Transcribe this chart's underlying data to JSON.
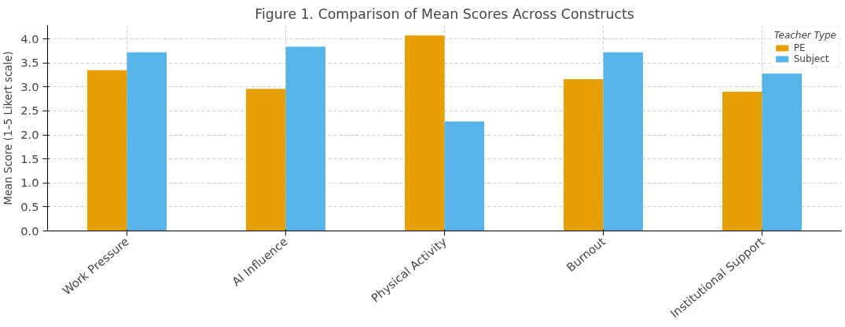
{
  "chart_data": {
    "type": "bar",
    "title": "Figure 1. Comparison of Mean Scores Across Constructs",
    "ylabel": "Mean Score (1–5 Likert scale)",
    "legend_title": "Teacher Type",
    "categories": [
      "Work Pressure",
      "AI Influence",
      "Physical Activity",
      "Burnout",
      "Institutional Support"
    ],
    "series": [
      {
        "name": "PE",
        "color": "#e69f00",
        "values": [
          3.35,
          2.96,
          4.07,
          3.16,
          2.9
        ]
      },
      {
        "name": "Subject",
        "color": "#56b4e9",
        "values": [
          3.72,
          3.84,
          2.28,
          3.72,
          3.28
        ]
      }
    ],
    "ylim": [
      0,
      4.28
    ],
    "yticks": [
      {
        "value": 0,
        "label": "0.0"
      },
      {
        "value": 0.5,
        "label": "0.5"
      },
      {
        "value": 1,
        "label": "1.0"
      },
      {
        "value": 1.5,
        "label": "1.5"
      },
      {
        "value": 2,
        "label": "2.0"
      },
      {
        "value": 2.5,
        "label": "2.5"
      },
      {
        "value": 3,
        "label": "3.0"
      },
      {
        "value": 3.5,
        "label": "3.5"
      },
      {
        "value": 4,
        "label": "4.0"
      }
    ],
    "grid": true,
    "legend": "top right"
  }
}
